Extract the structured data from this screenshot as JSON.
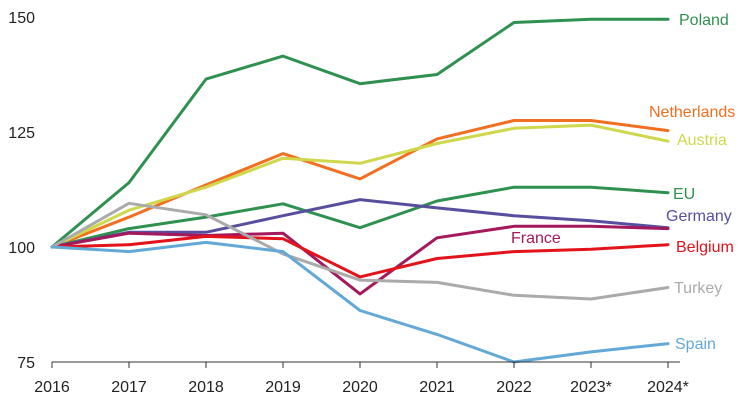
{
  "chart_data": {
    "type": "line",
    "title": "",
    "xlabel": "",
    "ylabel": "",
    "categories": [
      "2016",
      "2017",
      "2018",
      "2019",
      "2020",
      "2021",
      "2022",
      "2023*",
      "2024*"
    ],
    "ylim": [
      75,
      150
    ],
    "yticks": [
      75,
      100,
      125,
      150
    ],
    "grid": false,
    "legend": "direct labels at line ends",
    "series": [
      {
        "name": "Poland",
        "color": "#2f9150",
        "values": [
          100,
          114,
          136.5,
          141.5,
          135.5,
          137.5,
          148.8,
          149.5,
          149.5
        ]
      },
      {
        "name": "Netherlands",
        "color": "#f26f21",
        "values": [
          100,
          106.5,
          113.5,
          120.3,
          114.8,
          123.5,
          127.5,
          127.5,
          125.3
        ]
      },
      {
        "name": "Austria",
        "color": "#cfd84a",
        "values": [
          100,
          108,
          113,
          119.3,
          118.2,
          122.5,
          125.8,
          126.5,
          123
        ]
      },
      {
        "name": "EU",
        "color": "#2f9150",
        "values": [
          100,
          104,
          106.5,
          109.4,
          104.2,
          110,
          113,
          113,
          111.8
        ]
      },
      {
        "name": "Germany",
        "color": "#574f9e",
        "values": [
          100,
          103.2,
          103.2,
          106.8,
          110.3,
          108.5,
          106.8,
          105.7,
          104.2
        ]
      },
      {
        "name": "France",
        "color": "#a3195b",
        "values": [
          100,
          103,
          102.5,
          103,
          89.8,
          102,
          104.5,
          104.5,
          104
        ]
      },
      {
        "name": "Belgium",
        "color": "#e3131b",
        "values": [
          100,
          100.5,
          102.3,
          101.8,
          93.5,
          97.5,
          99,
          99.5,
          100.5
        ]
      },
      {
        "name": "Turkey",
        "color": "#aaaaaa",
        "values": [
          100,
          109.5,
          107,
          98.5,
          92.8,
          92.3,
          89.5,
          88.7,
          91.2
        ]
      },
      {
        "name": "Spain",
        "color": "#62a9d7",
        "values": [
          100,
          99,
          101,
          99,
          86.2,
          81,
          75,
          77.2,
          79
        ]
      }
    ],
    "labels": [
      {
        "series": "Poland",
        "text": "Poland"
      },
      {
        "series": "Netherlands",
        "text": "Netherlands"
      },
      {
        "series": "Austria",
        "text": "Austria"
      },
      {
        "series": "EU",
        "text": "EU"
      },
      {
        "series": "Germany",
        "text": "Germany"
      },
      {
        "series": "France",
        "text": "France"
      },
      {
        "series": "Belgium",
        "text": "Belgium"
      },
      {
        "series": "Turkey",
        "text": "Turkey"
      },
      {
        "series": "Spain",
        "text": "Spain"
      }
    ]
  }
}
